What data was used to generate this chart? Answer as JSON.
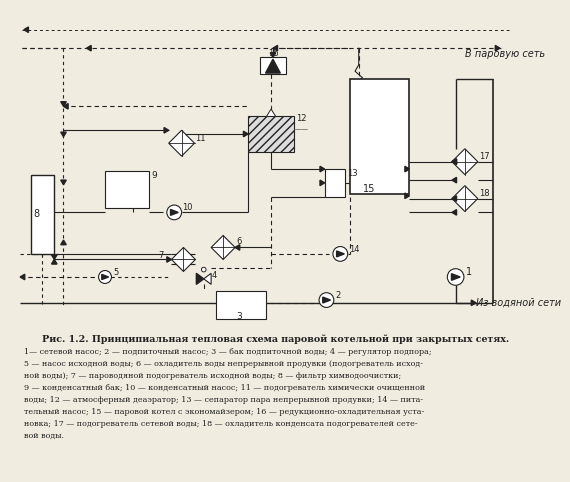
{
  "title": "Рис. 1.2. Принципиальная тепловая схема паровой котельной при закрытых сетях.",
  "caption_lines": [
    "1— сетевой насос; 2 — подпиточный насос; 3 — бак подпиточной воды; 4 — регулятор подпора;",
    "5 — насос исходной воды; 6 — охладитель воды непрерывной продувки (подогреватель исход-",
    "ной воды); 7 — пароводяной подогреватель исходной воды; 8 — фильтр химводоочистки;",
    "9 — конденсатный бак; 10 — конденсатный насос; 11 — подогреватель химически очищенной",
    "воды; 12 — атмосферный деаэратор; 13 — сепаратор пара непрерывной продувки; 14 — пита-",
    "тельный насос; 15 — паровой котел с экономайзером; 16 — редукционно-охладительная уста-",
    "новка; 17 — подогреватель сетевой воды; 18 — охладитель конденсата подогревателей сете-",
    "вой воды."
  ],
  "bg_color": "#f0ece0",
  "lc": "#222222"
}
